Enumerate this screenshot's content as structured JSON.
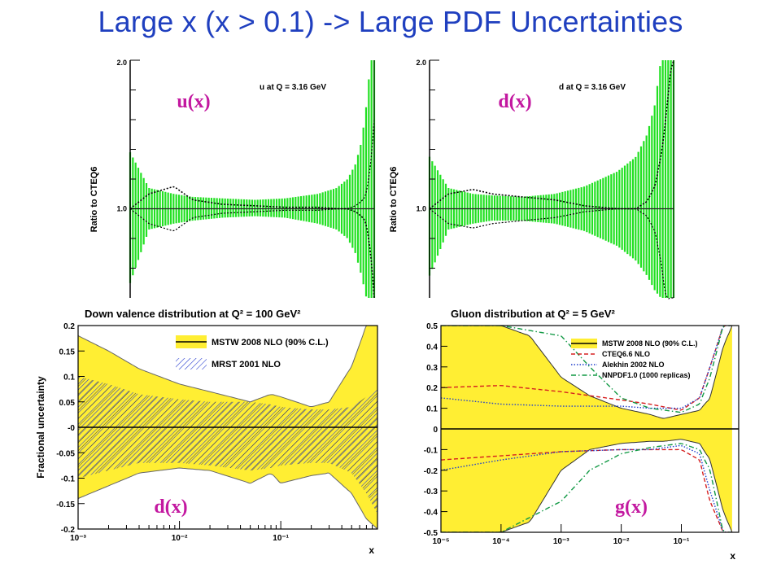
{
  "slide": {
    "title": "Large x (x > 0.1) -> Large PDF Uncertainties"
  },
  "chart_data": [
    {
      "type": "line",
      "panel": "top-left",
      "title": "u at Q = 3.16 GeV",
      "overlay_label": "u(x)",
      "ylabel": "Ratio to CTEQ6",
      "ylim": [
        0.4,
        2.0
      ],
      "xscale": "log",
      "y_tick_labels": [
        "2.0",
        "1.0"
      ],
      "band_color": "#22e022",
      "x": [
        0.0001,
        0.0002,
        0.0005,
        0.001,
        0.003,
        0.01,
        0.03,
        0.1,
        0.2,
        0.3,
        0.4,
        0.5,
        0.6,
        0.7,
        0.8
      ],
      "band_upper": [
        1.38,
        1.14,
        1.1,
        1.08,
        1.07,
        1.06,
        1.07,
        1.1,
        1.14,
        1.2,
        1.3,
        1.45,
        1.7,
        2.0,
        2.0
      ],
      "band_lower": [
        0.5,
        0.86,
        0.9,
        0.92,
        0.94,
        0.95,
        0.94,
        0.9,
        0.86,
        0.8,
        0.7,
        0.55,
        0.4,
        0.4,
        0.4
      ],
      "central_dotted": [
        1.0,
        1.1,
        1.15,
        1.06,
        1.03,
        1.02,
        1.01,
        1.01,
        1.0,
        1.0,
        0.98,
        0.95,
        0.9,
        0.7,
        0.4
      ]
    },
    {
      "type": "line",
      "panel": "top-right",
      "title": "d at Q = 3.16 GeV",
      "overlay_label": "d(x)",
      "ylabel": "Ratio to CTEQ6",
      "ylim": [
        0.4,
        2.0
      ],
      "xscale": "log",
      "y_tick_labels": [
        "2.0",
        "1.0"
      ],
      "band_color": "#22e022",
      "x": [
        0.0001,
        0.0002,
        0.0005,
        0.001,
        0.003,
        0.01,
        0.03,
        0.1,
        0.2,
        0.3,
        0.4,
        0.5,
        0.6,
        0.7,
        0.8
      ],
      "band_upper": [
        1.35,
        1.14,
        1.1,
        1.09,
        1.08,
        1.1,
        1.15,
        1.25,
        1.35,
        1.5,
        1.7,
        2.0,
        2.0,
        2.0,
        2.0
      ],
      "band_lower": [
        0.55,
        0.86,
        0.9,
        0.92,
        0.92,
        0.9,
        0.85,
        0.75,
        0.65,
        0.55,
        0.45,
        0.4,
        0.4,
        0.4,
        0.4
      ],
      "central_dotted": [
        1.0,
        1.1,
        1.13,
        1.1,
        1.08,
        1.06,
        1.02,
        1.0,
        1.0,
        1.05,
        1.15,
        1.35,
        1.6,
        1.9,
        2.0
      ]
    },
    {
      "type": "area",
      "panel": "bottom-left",
      "title": "Down valence distribution at Q² = 100 GeV²",
      "overlay_label": "d(x)",
      "xlabel": "x",
      "ylabel": "Fractional uncertainty",
      "xscale": "log",
      "xlim": [
        0.001,
        0.9
      ],
      "ylim": [
        -0.2,
        0.2
      ],
      "x_tick_labels": [
        "10⁻³",
        "10⁻²",
        "10⁻¹"
      ],
      "y_tick_labels": [
        "0.2",
        "0.15",
        "0.1",
        "0.05",
        "-0",
        "-0.05",
        "-0.1",
        "-0.15",
        "-0.2"
      ],
      "legend": [
        "MSTW 2008 NLO (90% C.L.)",
        "MRST 2001 NLO"
      ],
      "legend_position": "top-right",
      "series": [
        {
          "name": "MSTW 2008 NLO (90% C.L.)",
          "color": "#ffee33",
          "x": [
            0.001,
            0.002,
            0.004,
            0.01,
            0.02,
            0.05,
            0.08,
            0.1,
            0.2,
            0.3,
            0.5,
            0.7,
            0.9
          ],
          "upper": [
            0.18,
            0.15,
            0.115,
            0.085,
            0.07,
            0.05,
            0.065,
            0.06,
            0.04,
            0.05,
            0.12,
            0.2,
            0.2
          ],
          "lower": [
            -0.14,
            -0.115,
            -0.09,
            -0.08,
            -0.085,
            -0.11,
            -0.09,
            -0.11,
            -0.095,
            -0.09,
            -0.13,
            -0.18,
            -0.2
          ]
        },
        {
          "name": "MRST 2001 NLO",
          "color": "#3344cc",
          "x": [
            0.001,
            0.002,
            0.004,
            0.01,
            0.02,
            0.05,
            0.08,
            0.1,
            0.2,
            0.3,
            0.5,
            0.7,
            0.9
          ],
          "upper": [
            0.1,
            0.085,
            0.065,
            0.055,
            0.05,
            0.05,
            0.045,
            0.04,
            0.035,
            0.035,
            0.04,
            0.06,
            0.08
          ],
          "lower": [
            -0.1,
            -0.085,
            -0.07,
            -0.07,
            -0.075,
            -0.085,
            -0.08,
            -0.075,
            -0.07,
            -0.07,
            -0.09,
            -0.13,
            -0.17
          ]
        }
      ]
    },
    {
      "type": "area",
      "panel": "bottom-right",
      "title": "Gluon distribution at Q² = 5 GeV²",
      "overlay_label": "g(x)",
      "xlabel": "x",
      "xscale": "log",
      "xlim": [
        1e-05,
        0.9
      ],
      "ylim": [
        -0.5,
        0.5
      ],
      "x_tick_labels": [
        "10⁻⁵",
        "10⁻⁴",
        "10⁻³",
        "10⁻²",
        "10⁻¹"
      ],
      "y_tick_labels": [
        "0.5",
        "0.4",
        "0.3",
        "0.2",
        "0.1",
        "0",
        "-0.1",
        "-0.2",
        "-0.3",
        "-0.4",
        "-0.5"
      ],
      "legend": [
        "MSTW 2008 NLO (90% C.L.)",
        "CTEQ6.6 NLO",
        "Alekhin 2002 NLO",
        "NNPDF1.0 (1000 replicas)"
      ],
      "legend_position": "top-right",
      "series": [
        {
          "name": "MSTW 2008 NLO (90% C.L.)",
          "color": "#ffee33",
          "x": [
            1e-05,
            0.0001,
            0.0003,
            0.001,
            0.003,
            0.01,
            0.03,
            0.05,
            0.1,
            0.2,
            0.3,
            0.5,
            0.7
          ],
          "upper": [
            0.5,
            0.5,
            0.45,
            0.25,
            0.16,
            0.1,
            0.07,
            0.05,
            0.07,
            0.09,
            0.15,
            0.4,
            0.5
          ],
          "lower": [
            -0.5,
            -0.5,
            -0.45,
            -0.2,
            -0.1,
            -0.07,
            -0.06,
            -0.06,
            -0.05,
            -0.07,
            -0.15,
            -0.4,
            -0.5
          ]
        },
        {
          "name": "CTEQ6.6 NLO",
          "color": "#d62020",
          "x": [
            1e-05,
            0.0001,
            0.001,
            0.01,
            0.03,
            0.1,
            0.2,
            0.3,
            0.5,
            0.7
          ],
          "upper": [
            0.2,
            0.21,
            0.18,
            0.14,
            0.12,
            0.09,
            0.15,
            0.3,
            0.5,
            0.5
          ],
          "lower": [
            -0.15,
            -0.13,
            -0.11,
            -0.1,
            -0.1,
            -0.1,
            -0.15,
            -0.35,
            -0.5,
            -0.5
          ]
        },
        {
          "name": "Alekhin 2002 NLO",
          "color": "#1f3fcc",
          "x": [
            1e-05,
            0.0001,
            0.001,
            0.01,
            0.03,
            0.1,
            0.2,
            0.3,
            0.5,
            0.7
          ],
          "upper": [
            0.15,
            0.12,
            0.11,
            0.11,
            0.1,
            0.1,
            0.15,
            0.3,
            0.5,
            0.5
          ],
          "lower": [
            -0.2,
            -0.15,
            -0.11,
            -0.1,
            -0.1,
            -0.08,
            -0.12,
            -0.3,
            -0.5,
            -0.5
          ]
        },
        {
          "name": "NNPDF1.0 (1000 replicas)",
          "color": "#119944",
          "x": [
            1e-05,
            0.0001,
            0.001,
            0.003,
            0.01,
            0.03,
            0.1,
            0.2,
            0.3,
            0.5,
            0.7
          ],
          "upper": [
            0.5,
            0.5,
            0.45,
            0.3,
            0.15,
            0.1,
            0.08,
            0.12,
            0.25,
            0.5,
            0.5
          ],
          "lower": [
            -0.5,
            -0.5,
            -0.35,
            -0.2,
            -0.12,
            -0.09,
            -0.07,
            -0.1,
            -0.2,
            -0.5,
            -0.5
          ]
        }
      ]
    }
  ]
}
